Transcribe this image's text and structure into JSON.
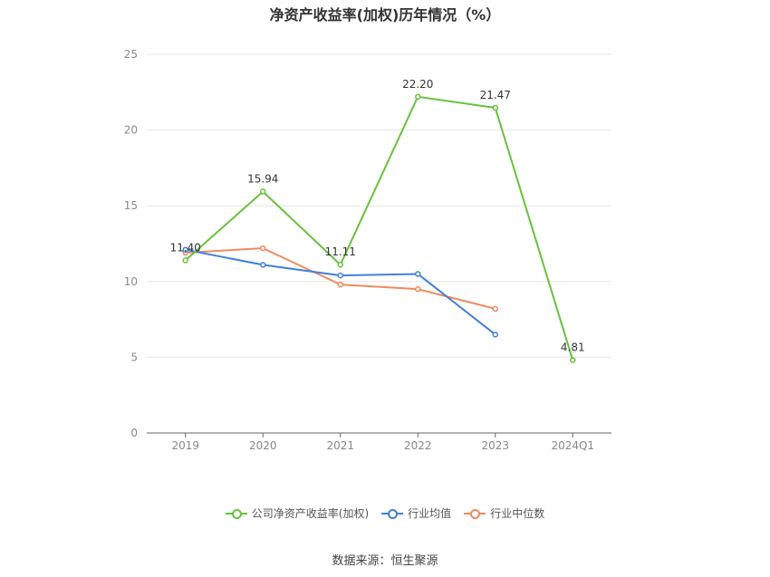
{
  "title": "净资产收益率(加权)历年情况（%）",
  "source": "数据来源：恒生聚源",
  "chart_data": {
    "type": "line",
    "categories": [
      "2019",
      "2020",
      "2021",
      "2022",
      "2023",
      "2024Q1"
    ],
    "ylim": [
      0,
      25
    ],
    "yticks": [
      0,
      5,
      10,
      15,
      20,
      25
    ],
    "grid": true,
    "legend_position": "bottom",
    "series": [
      {
        "name": "公司净资产收益率(加权)",
        "color": "#67c23a",
        "values": [
          11.4,
          15.94,
          11.11,
          22.2,
          21.47,
          4.81
        ],
        "labels": [
          "11.40",
          "15.94",
          "11.11",
          "22.20",
          "21.47",
          "4.81"
        ]
      },
      {
        "name": "行业均值",
        "color": "#3f7fdc",
        "values": [
          12.1,
          11.1,
          10.4,
          10.5,
          6.5,
          null
        ],
        "labels": []
      },
      {
        "name": "行业中位数",
        "color": "#f08a5d",
        "values": [
          11.9,
          12.2,
          9.8,
          9.5,
          8.2,
          null
        ],
        "labels": []
      }
    ]
  }
}
